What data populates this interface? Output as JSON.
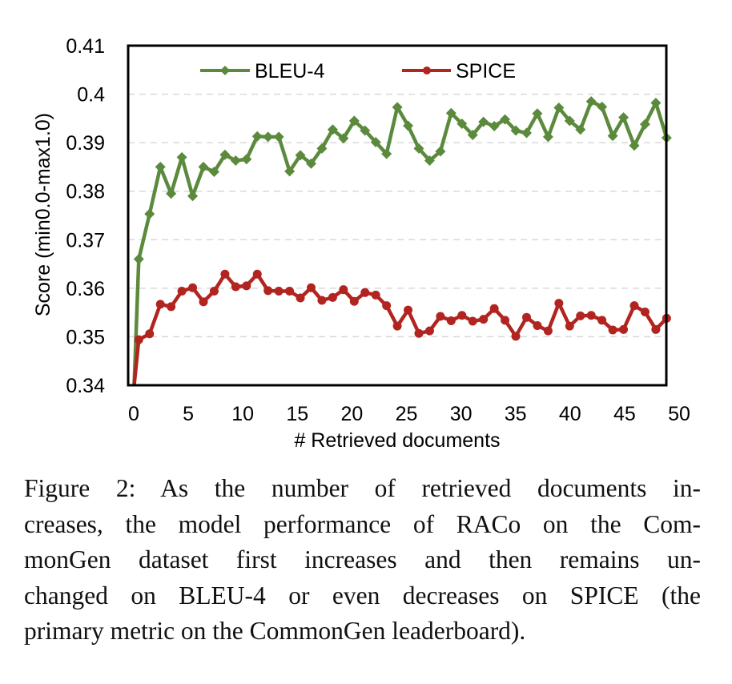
{
  "chart_data": {
    "type": "line",
    "title": "",
    "xlabel": "# Retrieved documents",
    "ylabel": "Score (min0.0-max1.0)",
    "xlim": [
      0,
      50
    ],
    "ylim": [
      0.34,
      0.41
    ],
    "x_ticks": [
      "0",
      "5",
      "10",
      "15",
      "20",
      "25",
      "30",
      "35",
      "40",
      "45",
      "50"
    ],
    "y_ticks": [
      "0.34",
      "0.35",
      "0.36",
      "0.37",
      "0.38",
      "0.39",
      "0.4",
      "0.41"
    ],
    "grid": "horizontal-dashed",
    "legend": "top",
    "x": [
      0,
      1,
      2,
      3,
      4,
      5,
      6,
      7,
      8,
      9,
      10,
      11,
      12,
      13,
      14,
      15,
      16,
      17,
      18,
      19,
      20,
      21,
      22,
      23,
      24,
      25,
      26,
      27,
      28,
      29,
      30,
      31,
      32,
      33,
      34,
      35,
      36,
      37,
      38,
      39,
      40,
      41,
      42,
      43,
      44,
      45,
      46,
      47,
      48,
      49,
      50
    ],
    "series": [
      {
        "name": "BLEU-4",
        "color": "#5b8a3c",
        "marker": "diamond",
        "values": [
          0.34,
          0.366,
          0.3753,
          0.385,
          0.3795,
          0.387,
          0.379,
          0.385,
          0.384,
          0.3875,
          0.3863,
          0.3866,
          0.3913,
          0.3912,
          0.3912,
          0.3841,
          0.3874,
          0.3857,
          0.3888,
          0.3927,
          0.3909,
          0.3945,
          0.3925,
          0.3901,
          0.3877,
          0.3973,
          0.3935,
          0.3888,
          0.3863,
          0.3882,
          0.3961,
          0.3939,
          0.3916,
          0.3943,
          0.3934,
          0.3948,
          0.3925,
          0.392,
          0.396,
          0.3912,
          0.3972,
          0.3945,
          0.3927,
          0.3985,
          0.3974,
          0.3914,
          0.3952,
          0.3894,
          0.3938,
          0.3982,
          0.391
        ]
      },
      {
        "name": "SPICE",
        "color": "#b2241f",
        "marker": "circle",
        "values": [
          0.34,
          0.3494,
          0.3506,
          0.3567,
          0.3562,
          0.3594,
          0.3601,
          0.3572,
          0.3594,
          0.3629,
          0.3603,
          0.3605,
          0.3629,
          0.3595,
          0.3594,
          0.3594,
          0.358,
          0.3601,
          0.3575,
          0.3581,
          0.3597,
          0.3573,
          0.3591,
          0.3586,
          0.3564,
          0.3522,
          0.3555,
          0.3507,
          0.3512,
          0.3542,
          0.3533,
          0.3544,
          0.3532,
          0.3536,
          0.3558,
          0.3534,
          0.3501,
          0.354,
          0.3523,
          0.3512,
          0.3569,
          0.3522,
          0.3543,
          0.3544,
          0.3534,
          0.3514,
          0.3515,
          0.3564,
          0.3551,
          0.3515,
          0.3538
        ]
      }
    ]
  },
  "caption": {
    "lines": [
      "Figure 2:  As the number of retrieved documents in-",
      "creases, the model performance of RACo on the Com-",
      "monGen dataset first increases and then remains un-",
      "changed on BLEU-4 or even decreases on SPICE (the",
      "primary metric on the CommonGen leaderboard)."
    ]
  }
}
